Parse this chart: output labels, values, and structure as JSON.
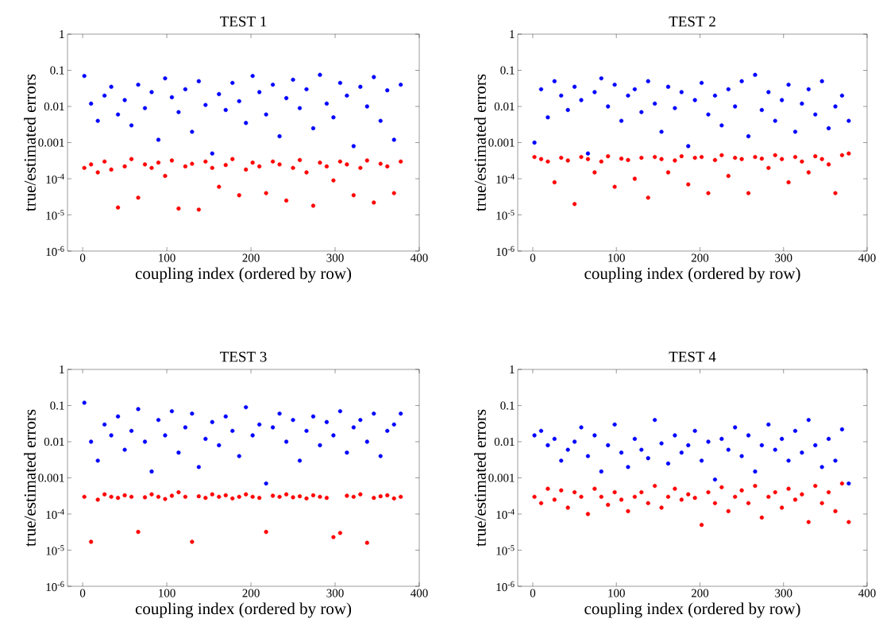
{
  "chart_data": [
    {
      "type": "scatter",
      "title": "TEST 1",
      "xlabel": "coupling index (ordered by row)",
      "ylabel": "true/estimated errors",
      "log": "y",
      "marker": "circle",
      "xlim": [
        -18,
        400
      ],
      "ylim": [
        1e-06,
        1
      ],
      "xticks": [
        0,
        100,
        200,
        300,
        400
      ],
      "yticks": [
        {
          "value": 1e-06,
          "label": "10$^{-6}$"
        },
        {
          "value": 1e-05,
          "label": "10$^{-5}$"
        },
        {
          "value": 0.0001,
          "label": "10$^{-4}$"
        },
        0.001,
        0.01,
        0.1,
        1
      ],
      "x": [
        2,
        10,
        18,
        26,
        34,
        42,
        50,
        58,
        66,
        74,
        82,
        90,
        98,
        106,
        114,
        122,
        130,
        138,
        146,
        154,
        162,
        170,
        178,
        186,
        194,
        202,
        210,
        218,
        226,
        234,
        242,
        250,
        258,
        266,
        274,
        282,
        290,
        298,
        306,
        314,
        322,
        330,
        338,
        346,
        354,
        362,
        370,
        378
      ],
      "series": [
        {
          "color": "#0000ff",
          "values": [
            0.07,
            0.012,
            0.004,
            0.02,
            0.035,
            0.006,
            0.015,
            0.003,
            0.04,
            0.009,
            0.025,
            0.0012,
            0.06,
            0.018,
            0.007,
            0.03,
            0.002,
            0.05,
            0.011,
            0.0005,
            0.022,
            0.008,
            0.045,
            0.014,
            0.0035,
            0.07,
            0.025,
            0.006,
            0.04,
            0.0015,
            0.017,
            0.055,
            0.009,
            0.03,
            0.0025,
            0.075,
            0.012,
            0.005,
            0.045,
            0.02,
            0.0008,
            0.035,
            0.01,
            0.065,
            0.004,
            0.028,
            0.0012,
            0.04
          ]
        },
        {
          "color": "#ff0000",
          "values": [
            0.0002,
            0.00025,
            0.00015,
            0.0003,
            0.00018,
            1.6e-05,
            0.00022,
            0.00035,
            3e-05,
            0.00025,
            0.0002,
            0.00028,
            0.00012,
            0.00032,
            1.5e-05,
            0.00022,
            0.00026,
            1.4e-05,
            0.0003,
            0.0002,
            6e-05,
            0.00024,
            0.00035,
            3.5e-05,
            0.00018,
            0.00028,
            0.00022,
            4e-05,
            0.0003,
            0.00025,
            2.5e-05,
            0.0002,
            0.00033,
            0.00015,
            1.8e-05,
            0.00028,
            0.00022,
            9e-05,
            0.0003,
            0.00025,
            3.5e-05,
            0.0002,
            0.00032,
            2.2e-05,
            0.00026,
            0.00022,
            4e-05,
            0.0003
          ]
        }
      ]
    },
    {
      "type": "scatter",
      "title": "TEST 2",
      "xlabel": "coupling index (ordered by row)",
      "ylabel": "true/estimated errors",
      "log": "y",
      "marker": "circle",
      "xlim": [
        -18,
        400
      ],
      "ylim": [
        1e-06,
        1
      ],
      "xticks": [
        0,
        100,
        200,
        300,
        400
      ],
      "yticks": [
        {
          "value": 1e-06,
          "label": "10$^{-6}$"
        },
        {
          "value": 1e-05,
          "label": "10$^{-5}$"
        },
        {
          "value": 0.0001,
          "label": "10$^{-4}$"
        },
        0.001,
        0.01,
        0.1,
        1
      ],
      "x": [
        2,
        10,
        18,
        26,
        34,
        42,
        50,
        58,
        66,
        74,
        82,
        90,
        98,
        106,
        114,
        122,
        130,
        138,
        146,
        154,
        162,
        170,
        178,
        186,
        194,
        202,
        210,
        218,
        226,
        234,
        242,
        250,
        258,
        266,
        274,
        282,
        290,
        298,
        306,
        314,
        322,
        330,
        338,
        346,
        354,
        362,
        370,
        378
      ],
      "series": [
        {
          "color": "#0000ff",
          "values": [
            0.001,
            0.03,
            0.005,
            0.05,
            0.02,
            0.008,
            0.035,
            0.015,
            0.0005,
            0.025,
            0.06,
            0.01,
            0.04,
            0.004,
            0.02,
            0.03,
            0.007,
            0.05,
            0.012,
            0.002,
            0.035,
            0.009,
            0.025,
            0.0008,
            0.015,
            0.045,
            0.006,
            0.02,
            0.003,
            0.03,
            0.01,
            0.05,
            0.0015,
            0.075,
            0.008,
            0.025,
            0.004,
            0.015,
            0.04,
            0.002,
            0.012,
            0.03,
            0.006,
            0.05,
            0.0025,
            0.01,
            0.02,
            0.004
          ]
        },
        {
          "color": "#ff0000",
          "values": [
            0.0004,
            0.00035,
            0.0003,
            8e-05,
            0.00038,
            0.00032,
            2e-05,
            0.0004,
            0.00035,
            0.00015,
            0.0003,
            0.00042,
            6e-05,
            0.00036,
            0.00033,
            0.0001,
            0.00038,
            3e-05,
            0.0004,
            0.00035,
            0.00015,
            0.00032,
            0.00042,
            7e-05,
            0.00038,
            0.0004,
            4e-05,
            0.00033,
            0.00045,
            0.00012,
            0.00038,
            0.00035,
            4e-05,
            0.0004,
            0.00036,
            0.0002,
            0.00045,
            0.00035,
            8e-05,
            0.0004,
            0.0003,
            0.00015,
            0.00042,
            0.00035,
            0.00025,
            4e-05,
            0.00045,
            0.0005
          ]
        }
      ]
    },
    {
      "type": "scatter",
      "title": "TEST 3",
      "xlabel": "coupling index (ordered by row)",
      "ylabel": "true/estimated errors",
      "log": "y",
      "marker": "circle",
      "xlim": [
        -18,
        400
      ],
      "ylim": [
        1e-06,
        1
      ],
      "xticks": [
        0,
        100,
        200,
        300,
        400
      ],
      "yticks": [
        {
          "value": 1e-06,
          "label": "10$^{-6}$"
        },
        {
          "value": 1e-05,
          "label": "10$^{-5}$"
        },
        {
          "value": 0.0001,
          "label": "10$^{-4}$"
        },
        0.001,
        0.01,
        0.1,
        1
      ],
      "x": [
        2,
        10,
        18,
        26,
        34,
        42,
        50,
        58,
        66,
        74,
        82,
        90,
        98,
        106,
        114,
        122,
        130,
        138,
        146,
        154,
        162,
        170,
        178,
        186,
        194,
        202,
        210,
        218,
        226,
        234,
        242,
        250,
        258,
        266,
        274,
        282,
        290,
        298,
        306,
        314,
        322,
        330,
        338,
        346,
        354,
        362,
        370,
        378
      ],
      "series": [
        {
          "color": "#0000ff",
          "values": [
            0.12,
            0.01,
            0.003,
            0.03,
            0.015,
            0.05,
            0.006,
            0.02,
            0.08,
            0.01,
            0.0015,
            0.04,
            0.015,
            0.07,
            0.005,
            0.025,
            0.06,
            0.002,
            0.012,
            0.035,
            0.008,
            0.05,
            0.02,
            0.004,
            0.09,
            0.015,
            0.03,
            0.0007,
            0.025,
            0.06,
            0.01,
            0.04,
            0.003,
            0.02,
            0.05,
            0.008,
            0.035,
            0.015,
            0.07,
            0.005,
            0.025,
            0.04,
            0.01,
            0.06,
            0.004,
            0.02,
            0.03,
            0.06
          ]
        },
        {
          "color": "#ff0000",
          "values": [
            0.0003,
            1.7e-05,
            0.00025,
            0.00035,
            0.0003,
            0.00028,
            0.00033,
            0.0003,
            3.2e-05,
            0.00029,
            0.00035,
            0.0003,
            0.00026,
            0.00032,
            0.0004,
            0.0003,
            1.7e-05,
            0.00031,
            0.00028,
            0.00035,
            0.0003,
            0.00033,
            0.00027,
            0.0003,
            0.00035,
            0.0003,
            0.00028,
            3.2e-05,
            0.00032,
            0.0003,
            0.00035,
            0.00029,
            0.00031,
            0.00027,
            0.00033,
            0.0003,
            0.00028,
            2.3e-05,
            3e-05,
            0.00032,
            0.0003,
            0.00035,
            1.6e-05,
            0.00028,
            0.00031,
            0.00033,
            0.00027,
            0.0003
          ]
        }
      ]
    },
    {
      "type": "scatter",
      "title": "TEST 4",
      "xlabel": "coupling index (ordered by row)",
      "ylabel": "true/estimated errors",
      "log": "y",
      "marker": "circle",
      "xlim": [
        -18,
        400
      ],
      "ylim": [
        1e-06,
        1
      ],
      "xticks": [
        0,
        100,
        200,
        300,
        400
      ],
      "yticks": [
        {
          "value": 1e-06,
          "label": "10$^{-6}$"
        },
        {
          "value": 1e-05,
          "label": "10$^{-5}$"
        },
        {
          "value": 0.0001,
          "label": "10$^{-4}$"
        },
        0.001,
        0.01,
        0.1,
        1
      ],
      "x": [
        2,
        10,
        18,
        26,
        34,
        42,
        50,
        58,
        66,
        74,
        82,
        90,
        98,
        106,
        114,
        122,
        130,
        138,
        146,
        154,
        162,
        170,
        178,
        186,
        194,
        202,
        210,
        218,
        226,
        234,
        242,
        250,
        258,
        266,
        274,
        282,
        290,
        298,
        306,
        314,
        322,
        330,
        338,
        346,
        354,
        362,
        370,
        378
      ],
      "series": [
        {
          "color": "#0000ff",
          "values": [
            0.015,
            0.02,
            0.008,
            0.012,
            0.003,
            0.006,
            0.01,
            0.025,
            0.004,
            0.015,
            0.0015,
            0.008,
            0.03,
            0.005,
            0.002,
            0.012,
            0.006,
            0.0035,
            0.04,
            0.009,
            0.0025,
            0.015,
            0.005,
            0.008,
            0.02,
            0.003,
            0.01,
            0.0009,
            0.012,
            0.006,
            0.025,
            0.004,
            0.015,
            0.0015,
            0.008,
            0.03,
            0.006,
            0.012,
            0.003,
            0.02,
            0.005,
            0.04,
            0.008,
            0.002,
            0.012,
            0.003,
            0.022,
            0.0007
          ]
        },
        {
          "color": "#ff0000",
          "values": [
            0.0003,
            0.0002,
            0.0005,
            0.00025,
            0.00045,
            0.00015,
            0.0004,
            0.0003,
            0.0001,
            0.0005,
            0.0003,
            0.00018,
            0.0004,
            0.00025,
            0.00012,
            0.0003,
            0.0004,
            0.0002,
            0.0006,
            0.00015,
            0.0003,
            0.0005,
            0.00025,
            0.00035,
            0.00028,
            5e-05,
            0.0004,
            0.0002,
            0.00055,
            0.00012,
            0.0003,
            0.00045,
            0.0002,
            0.0006,
            8e-05,
            0.0003,
            0.0004,
            0.00015,
            0.0005,
            0.00025,
            0.00035,
            6e-05,
            0.0006,
            0.0002,
            0.0004,
            0.00012,
            0.0007,
            6e-05
          ]
        }
      ]
    }
  ]
}
